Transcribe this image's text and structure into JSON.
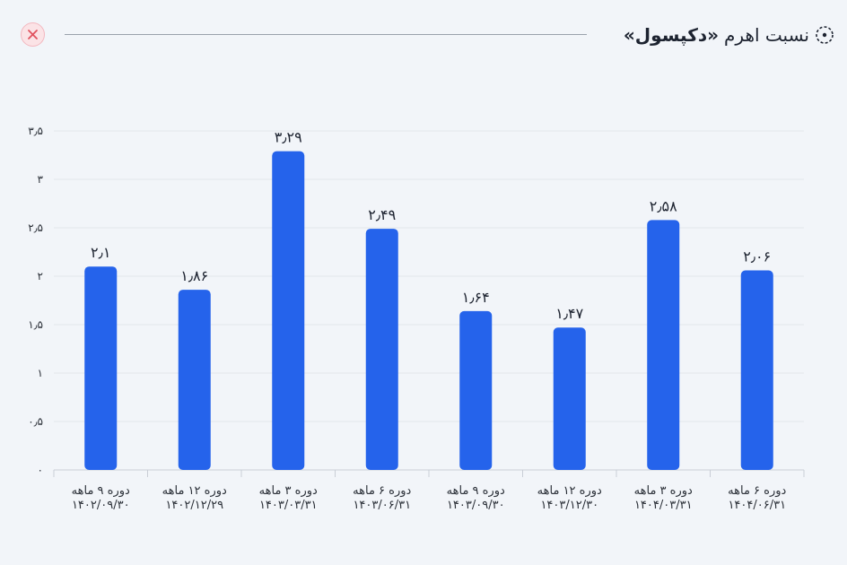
{
  "header": {
    "title_prefix": "نسبت اهرم",
    "title_name": "«دکپسول»"
  },
  "colors": {
    "bar": "#2563eb",
    "grid": "#e2e6ec",
    "axis": "#c9ced6",
    "close_accent": "#e0525e"
  },
  "icons": {
    "title_icon": "dotted-circle-icon",
    "close_icon": "close-icon"
  },
  "chart_data": {
    "type": "bar",
    "categories": [
      [
        "دوره ۹ ماهه",
        "۱۴۰۲/۰۹/۳۰"
      ],
      [
        "دوره ۱۲ ماهه",
        "۱۴۰۲/۱۲/۲۹"
      ],
      [
        "دوره ۳ ماهه",
        "۱۴۰۳/۰۳/۳۱"
      ],
      [
        "دوره ۶ ماهه",
        "۱۴۰۳/۰۶/۳۱"
      ],
      [
        "دوره ۹ ماهه",
        "۱۴۰۳/۰۹/۳۰"
      ],
      [
        "دوره ۱۲ ماهه",
        "۱۴۰۳/۱۲/۳۰"
      ],
      [
        "دوره ۳ ماهه",
        "۱۴۰۴/۰۳/۳۱"
      ],
      [
        "دوره ۶ ماهه",
        "۱۴۰۴/۰۶/۳۱"
      ]
    ],
    "values": [
      2.1,
      1.86,
      3.29,
      2.49,
      1.64,
      1.47,
      2.58,
      2.06
    ],
    "value_labels": [
      "۲٫۱",
      "۱٫۸۶",
      "۳٫۲۹",
      "۲٫۴۹",
      "۱٫۶۴",
      "۱٫۴۷",
      "۲٫۵۸",
      "۲٫۰۶"
    ],
    "ylim": [
      0,
      3.5
    ],
    "yticks": [
      0,
      0.5,
      1,
      1.5,
      2,
      2.5,
      3,
      3.5
    ],
    "ytick_labels": [
      "۰",
      "۰٫۵",
      "۱",
      "۱٫۵",
      "۲",
      "۲٫۵",
      "۳",
      "۳٫۵"
    ],
    "grid": true,
    "legend": "none"
  }
}
